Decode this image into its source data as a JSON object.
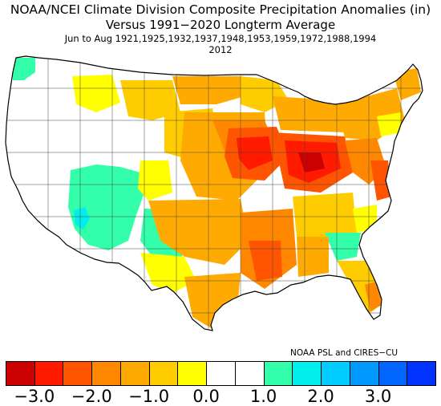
{
  "title": {
    "line1": "NOAA/NCEI Climate Division Composite Precipitation Anomalies (in)",
    "line2": "Versus 1991−2020 Longterm Average",
    "line3": "Jun to Aug   1921,1925,1932,1937,1948,1953,1959,1972,1988,1994",
    "line4": "2012"
  },
  "credit": "NOAA PSL and CIRES−CU",
  "colorbar": {
    "colors": [
      "#cc0000",
      "#ff1a00",
      "#ff5500",
      "#ff8800",
      "#ffaa00",
      "#ffcc00",
      "#ffff00",
      "#ffffff",
      "#ffffff",
      "#33ffaa",
      "#00eeee",
      "#00ccff",
      "#0099ff",
      "#0066ff",
      "#0033ff"
    ],
    "tick_labels": [
      "−3.0",
      "−2.0",
      "−1.0",
      "0.0",
      "1.0",
      "2.0",
      "3.0"
    ]
  },
  "map": {
    "background_color": "#ffffff",
    "outline_color": "#000000",
    "division_line_color": "#444444",
    "legend_class_colors": {
      "very_dry": "#cc0000",
      "dry_red": "#ff1a00",
      "dry_orange_red": "#ff5500",
      "dry_orange": "#ff8800",
      "dry_amber": "#ffaa00",
      "dry_gold": "#ffcc00",
      "slightly_dry": "#ffff00",
      "near_normal": "#ffffff",
      "slightly_wet": "#33ffaa",
      "wet": "#00eeee"
    }
  }
}
